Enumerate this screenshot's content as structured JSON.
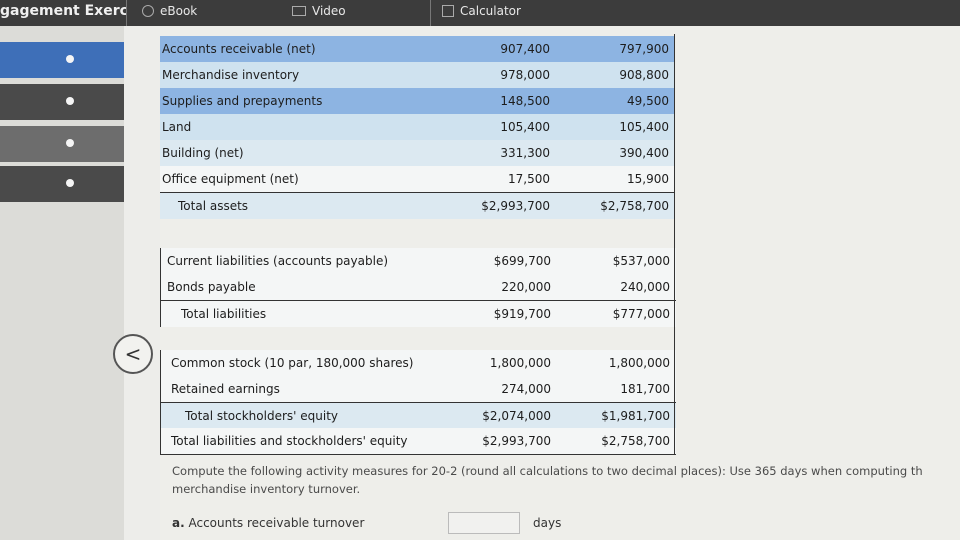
{
  "header": {
    "title": "gagement Exerc",
    "tabs": [
      {
        "label": "eBook",
        "icon": "book-icon"
      },
      {
        "label": "Video",
        "icon": "video-icon"
      },
      {
        "label": "Calculator",
        "icon": "calculator-icon"
      }
    ]
  },
  "sidebar": {
    "back_icon": "<",
    "items": [
      {
        "state": "active"
      },
      {
        "state": "dark"
      },
      {
        "state": "dim"
      },
      {
        "state": "default"
      }
    ]
  },
  "balance_sheet": {
    "assets": [
      {
        "label": "Accounts receivable (net)",
        "y2": "907,400",
        "y1": "797,900"
      },
      {
        "label": "Merchandise inventory",
        "y2": "978,000",
        "y1": "908,800"
      },
      {
        "label": "Supplies and prepayments",
        "y2": "148,500",
        "y1": "49,500"
      },
      {
        "label": "Land",
        "y2": "105,400",
        "y1": "105,400"
      },
      {
        "label": "Building (net)",
        "y2": "331,300",
        "y1": "390,400"
      },
      {
        "label": "Office equipment (net)",
        "y2": "17,500",
        "y1": "15,900"
      }
    ],
    "total_assets": {
      "label": "Total assets",
      "y2": "$2,993,700",
      "y1": "$2,758,700"
    },
    "liabilities": [
      {
        "label": "Current liabilities (accounts payable)",
        "y2": "$699,700",
        "y1": "$537,000"
      },
      {
        "label": "Bonds payable",
        "y2": "220,000",
        "y1": "240,000"
      }
    ],
    "total_liabilities": {
      "label": "Total liabilities",
      "y2": "$919,700",
      "y1": "$777,000"
    },
    "equity": [
      {
        "label": "Common stock (10 par, 180,000 shares)",
        "y2": "1,800,000",
        "y1": "1,800,000"
      },
      {
        "label": "Retained earnings",
        "y2": "274,000",
        "y1": "181,700"
      }
    ],
    "total_equity": {
      "label": "Total stockholders' equity",
      "y2": "$2,074,000",
      "y1": "$1,981,700"
    },
    "total_le": {
      "label": "Total liabilities and stockholders' equity",
      "y2": "$2,993,700",
      "y1": "$2,758,700"
    }
  },
  "question": {
    "text": "Compute the following activity measures for 20-2 (round all calculations to two decimal places): Use 365 days when computing th merchandise inventory turnover.",
    "part_a_letter": "a.",
    "part_a_label": "Accounts receivable turnover",
    "part_a_value": "",
    "part_a_unit": "days"
  }
}
